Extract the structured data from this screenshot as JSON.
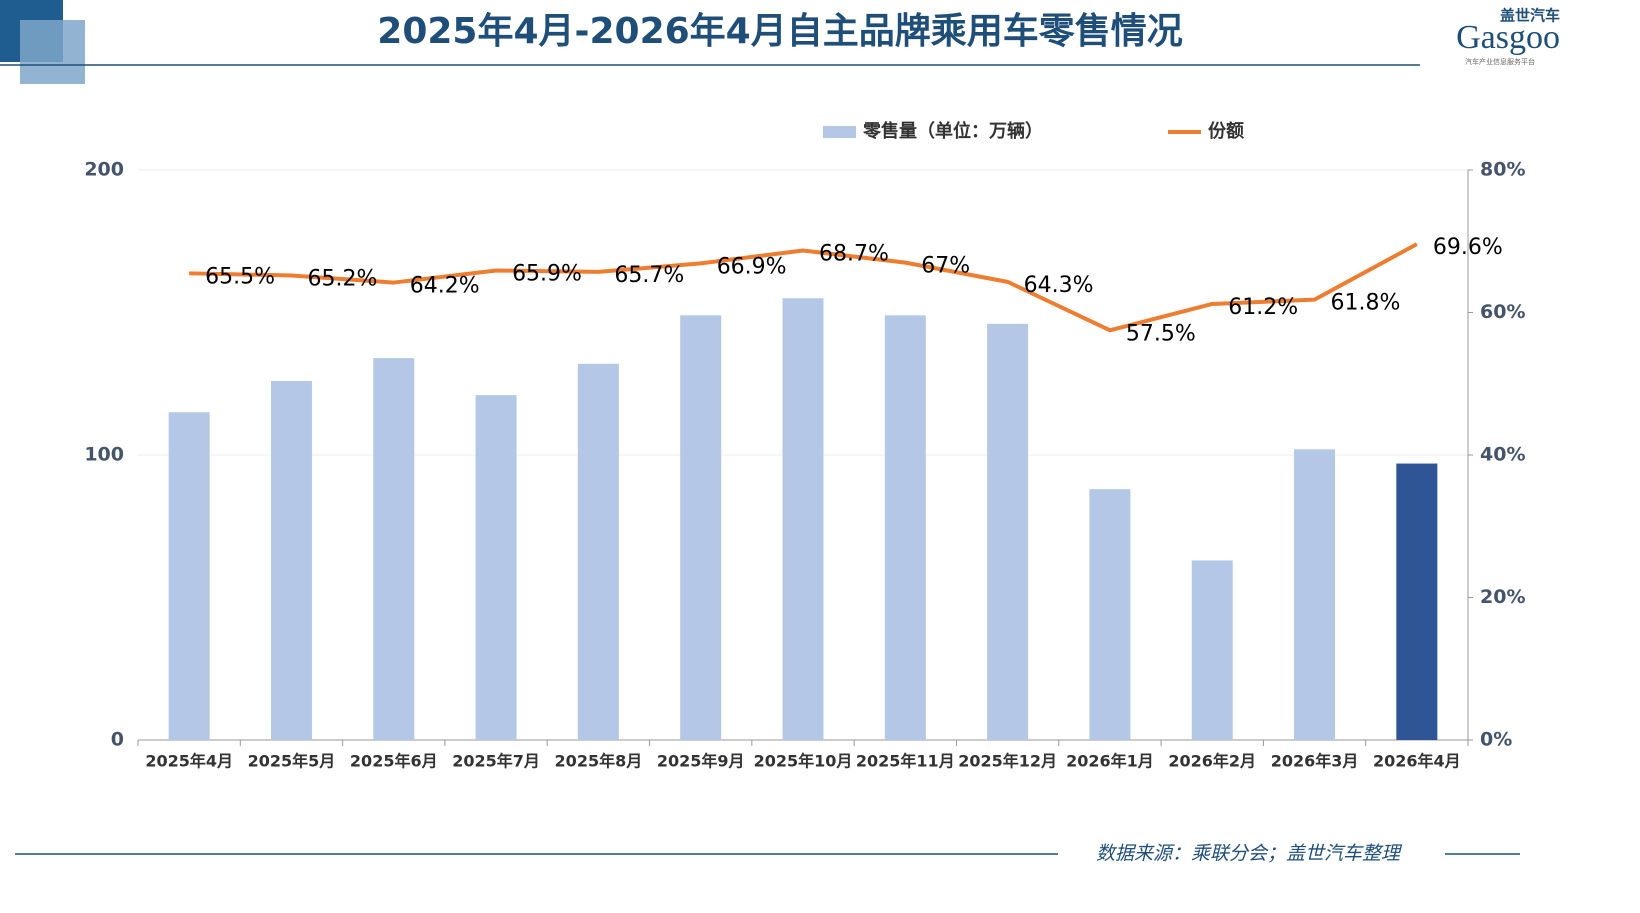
{
  "chart_data": {
    "type": "bar",
    "title": "2025年4月-2026年4月自主品牌乘用车零售情况",
    "categories": [
      "2025年4月",
      "2025年5月",
      "2025年6月",
      "2025年7月",
      "2025年8月",
      "2025年9月",
      "2025年10月",
      "2025年11月",
      "2025年12月",
      "2026年1月",
      "2026年2月",
      "2026年3月",
      "2026年4月"
    ],
    "series": [
      {
        "name": "零售量（单位：万辆）",
        "type": "bar",
        "color": "#b4c7e7",
        "colors": [
          "#b4c7e7",
          "#b4c7e7",
          "#b4c7e7",
          "#b4c7e7",
          "#b4c7e7",
          "#b4c7e7",
          "#b4c7e7",
          "#b4c7e7",
          "#b4c7e7",
          "#b4c7e7",
          "#b4c7e7",
          "#b4c7e7",
          "#2f5597"
        ],
        "values": [
          115,
          126,
          134,
          121,
          132,
          149,
          155,
          149,
          146,
          88,
          63,
          102,
          97
        ]
      },
      {
        "name": "份额",
        "type": "line",
        "axis": "y2",
        "color": "#ed7d31",
        "values": [
          65.5,
          65.2,
          64.2,
          65.9,
          65.7,
          66.9,
          68.7,
          67,
          64.3,
          57.5,
          61.2,
          61.8,
          69.6
        ],
        "value_labels": [
          "65.5%",
          "65.2%",
          "64.2%",
          "65.9%",
          "65.7%",
          "66.9%",
          "68.7%",
          "67%",
          "64.3%",
          "57.5%",
          "61.2%",
          "61.8%",
          "69.6%"
        ]
      }
    ],
    "ylim": [
      0,
      200
    ],
    "yticks": [
      0,
      100,
      200
    ],
    "y2lim": [
      0,
      80
    ],
    "y2ticks": [
      {
        "value": 0,
        "label": "0%"
      },
      {
        "value": 20,
        "label": "20%"
      },
      {
        "value": 40,
        "label": "40%"
      },
      {
        "value": 60,
        "label": "60%"
      },
      {
        "value": 80,
        "label": "80%"
      }
    ],
    "grid": true,
    "legend": "top"
  },
  "logo": {
    "name": "盖世汽车",
    "brand": "Gasgoo",
    "tagline": "汽车产业信息服务平台"
  },
  "source": "数据来源：乘联分会；盖世汽车整理"
}
